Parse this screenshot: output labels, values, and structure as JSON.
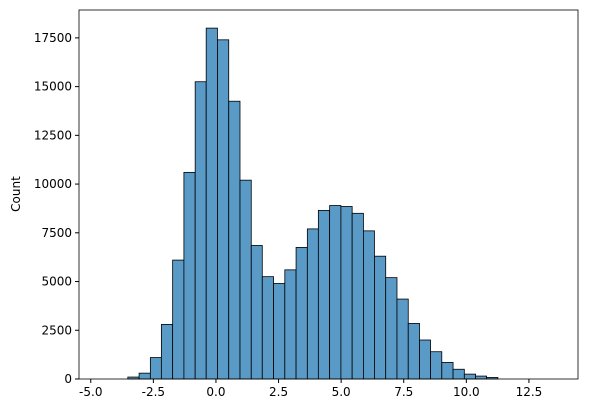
{
  "chart_data": {
    "type": "histogram",
    "ylabel": "Count",
    "color": "#5a9ac7",
    "edgecolor": "#000000",
    "bins": [
      -3.52,
      -3.07,
      -2.62,
      -2.18,
      -1.73,
      -1.28,
      -0.83,
      -0.39,
      0.06,
      0.51,
      0.96,
      1.41,
      1.85,
      2.3,
      2.75,
      3.2,
      3.65,
      4.09,
      4.54,
      4.99,
      5.44,
      5.89,
      6.33,
      6.78,
      7.23,
      7.68,
      8.13,
      8.57,
      9.02,
      9.47,
      9.92,
      10.37,
      10.81,
      11.26
    ],
    "values": [
      100,
      300,
      1100,
      2800,
      6100,
      10600,
      15250,
      18000,
      17400,
      14250,
      10200,
      6850,
      5250,
      4900,
      5600,
      6750,
      7700,
      8650,
      8900,
      8850,
      8500,
      7600,
      6300,
      5200,
      4100,
      2850,
      2000,
      1400,
      850,
      500,
      250,
      150,
      80
    ],
    "xlim": [
      -5.47,
      14.46
    ],
    "ylim": [
      0,
      18930
    ],
    "xticks": [
      {
        "value": -5,
        "label": "-5.0"
      },
      -2.5,
      {
        "value": 0,
        "label": "0.0"
      },
      2.5,
      {
        "value": 5,
        "label": "5.0"
      },
      7.5,
      {
        "value": 10,
        "label": "10.0"
      },
      12.5
    ],
    "yticks": [
      0,
      2500,
      5000,
      7500,
      10000,
      12500,
      15000,
      17500
    ]
  }
}
